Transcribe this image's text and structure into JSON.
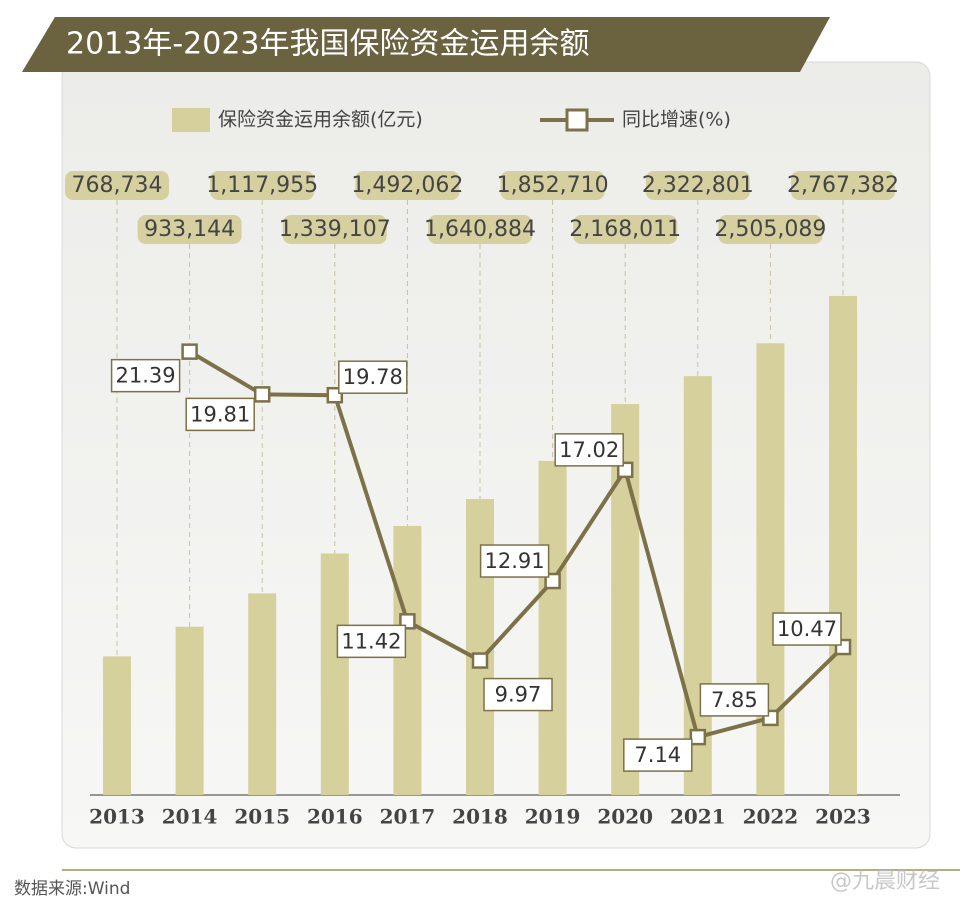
{
  "chart_data": {
    "type": "bar-line",
    "title": "2013年-2023年我国保险资金运用余额",
    "categories": [
      "2013",
      "2014",
      "2015",
      "2016",
      "2017",
      "2018",
      "2019",
      "2020",
      "2021",
      "2022",
      "2023"
    ],
    "series": [
      {
        "name": "保险资金运用余额(亿元)",
        "type": "bar",
        "color": "#d6d09c",
        "values": [
          768734,
          933144,
          1117955,
          1339107,
          1492062,
          1640884,
          1852710,
          2168011,
          2322801,
          2505089,
          2767382
        ],
        "value_labels": [
          "768,734",
          "933,144",
          "1,117,955",
          "1,339,107",
          "1,492,062",
          "1,640,884",
          "1,852,710",
          "2,168,011",
          "2,322,801",
          "2,505,089",
          "2,767,382"
        ]
      },
      {
        "name": "同比增速(%)",
        "type": "line",
        "axis": "y2",
        "color": "#7c7148",
        "values": [
          null,
          21.39,
          19.81,
          19.78,
          11.42,
          9.97,
          12.91,
          17.02,
          7.14,
          7.85,
          10.47
        ]
      }
    ],
    "ylim": [
      0,
      3000000
    ],
    "y2lim": [
      5,
      25
    ],
    "source": "数据来源:Wind",
    "watermark": "@九晨财经"
  }
}
